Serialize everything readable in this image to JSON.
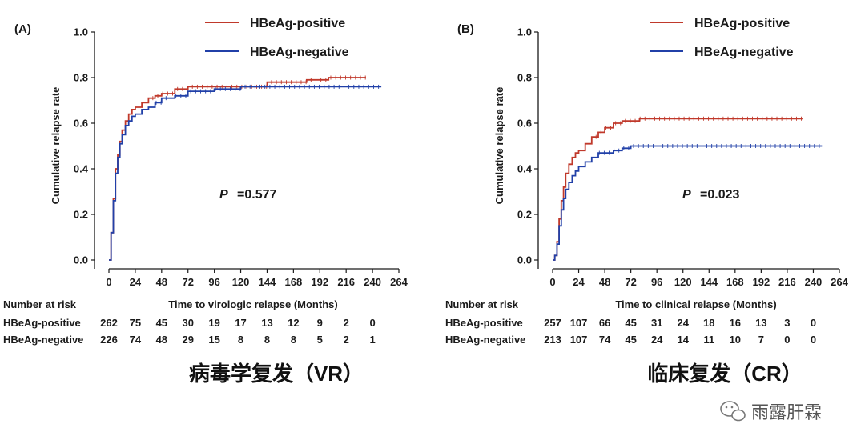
{
  "colors": {
    "positive": "#c0392b",
    "negative": "#2140a8",
    "axis": "#1a1a1a"
  },
  "watermark": {
    "icon": "wechat-icon",
    "text": "雨露肝霖"
  },
  "chart_data": [
    {
      "type": "line",
      "panel_label": "(A)",
      "xlabel": "Time to virologic relapse (Months)",
      "ylabel": "Cumulative relapse rate",
      "xlim": [
        0,
        264
      ],
      "ylim": [
        0,
        1.0
      ],
      "x_ticks": [
        "0",
        "24",
        "48",
        "72",
        "96",
        "120",
        "144",
        "168",
        "192",
        "216",
        "240",
        "264"
      ],
      "y_ticks": [
        "0.0",
        "0.2",
        "0.4",
        "0.6",
        "0.8",
        "1.0"
      ],
      "annotation_prefix": "P",
      "annotation_value": "=0.577",
      "caption": "病毒学复发（VR）",
      "series": [
        {
          "name": "HBeAg-positive",
          "color": "#c0392b",
          "x": [
            0,
            2,
            4,
            6,
            8,
            10,
            12,
            15,
            18,
            21,
            24,
            30,
            36,
            42,
            48,
            60,
            72,
            96,
            120,
            144,
            168,
            180,
            200,
            220,
            234
          ],
          "y": [
            0,
            0.12,
            0.27,
            0.4,
            0.46,
            0.52,
            0.57,
            0.61,
            0.64,
            0.66,
            0.67,
            0.69,
            0.71,
            0.72,
            0.73,
            0.75,
            0.76,
            0.76,
            0.76,
            0.78,
            0.78,
            0.79,
            0.8,
            0.8,
            0.8
          ]
        },
        {
          "name": "HBeAg-negative",
          "color": "#2140a8",
          "x": [
            0,
            2,
            4,
            6,
            8,
            10,
            12,
            15,
            18,
            21,
            24,
            30,
            36,
            42,
            48,
            60,
            72,
            96,
            120,
            144,
            168,
            200,
            230,
            248
          ],
          "y": [
            0,
            0.12,
            0.26,
            0.38,
            0.45,
            0.51,
            0.55,
            0.59,
            0.61,
            0.63,
            0.64,
            0.66,
            0.67,
            0.69,
            0.71,
            0.72,
            0.74,
            0.75,
            0.76,
            0.76,
            0.76,
            0.76,
            0.76,
            0.76
          ]
        }
      ],
      "risk_table": {
        "header": "Number at risk",
        "rows": [
          {
            "label": "HBeAg-positive",
            "values": [
              "262",
              "75",
              "45",
              "30",
              "19",
              "17",
              "13",
              "12",
              "9",
              "2",
              "0"
            ]
          },
          {
            "label": "HBeAg-negative",
            "values": [
              "226",
              "74",
              "48",
              "29",
              "15",
              "8",
              "8",
              "8",
              "5",
              "2",
              "1"
            ]
          }
        ]
      }
    },
    {
      "type": "line",
      "panel_label": "(B)",
      "xlabel": "Time to clinical relapse (Months)",
      "ylabel": "Cumulative relapse rate",
      "xlim": [
        0,
        264
      ],
      "ylim": [
        0,
        1.0
      ],
      "x_ticks": [
        "0",
        "24",
        "48",
        "72",
        "96",
        "120",
        "144",
        "168",
        "192",
        "216",
        "240",
        "264"
      ],
      "y_ticks": [
        "0.0",
        "0.2",
        "0.4",
        "0.6",
        "0.8",
        "1.0"
      ],
      "annotation_prefix": "P",
      "annotation_value": "=0.023",
      "caption": "临床复发（CR）",
      "series": [
        {
          "name": "HBeAg-positive",
          "color": "#c0392b",
          "x": [
            0,
            2,
            4,
            6,
            8,
            10,
            12,
            15,
            18,
            21,
            24,
            30,
            36,
            42,
            48,
            56,
            64,
            72,
            80,
            96,
            120,
            160,
            200,
            230
          ],
          "y": [
            0,
            0.02,
            0.08,
            0.18,
            0.26,
            0.32,
            0.38,
            0.42,
            0.45,
            0.47,
            0.48,
            0.51,
            0.54,
            0.56,
            0.58,
            0.6,
            0.61,
            0.61,
            0.62,
            0.62,
            0.62,
            0.62,
            0.62,
            0.62
          ]
        },
        {
          "name": "HBeAg-negative",
          "color": "#2140a8",
          "x": [
            0,
            2,
            4,
            6,
            8,
            10,
            12,
            15,
            18,
            21,
            24,
            30,
            36,
            42,
            48,
            56,
            64,
            72,
            80,
            96,
            120,
            160,
            200,
            248
          ],
          "y": [
            0,
            0.02,
            0.07,
            0.15,
            0.22,
            0.27,
            0.31,
            0.34,
            0.37,
            0.39,
            0.41,
            0.43,
            0.45,
            0.47,
            0.47,
            0.48,
            0.49,
            0.5,
            0.5,
            0.5,
            0.5,
            0.5,
            0.5,
            0.5
          ]
        }
      ],
      "risk_table": {
        "header": "Number at risk",
        "rows": [
          {
            "label": "HBeAg-positive",
            "values": [
              "257",
              "107",
              "66",
              "45",
              "31",
              "24",
              "18",
              "16",
              "13",
              "3",
              "0"
            ]
          },
          {
            "label": "HBeAg-negative",
            "values": [
              "213",
              "107",
              "74",
              "45",
              "24",
              "14",
              "11",
              "10",
              "7",
              "0",
              "0"
            ]
          }
        ]
      }
    }
  ]
}
